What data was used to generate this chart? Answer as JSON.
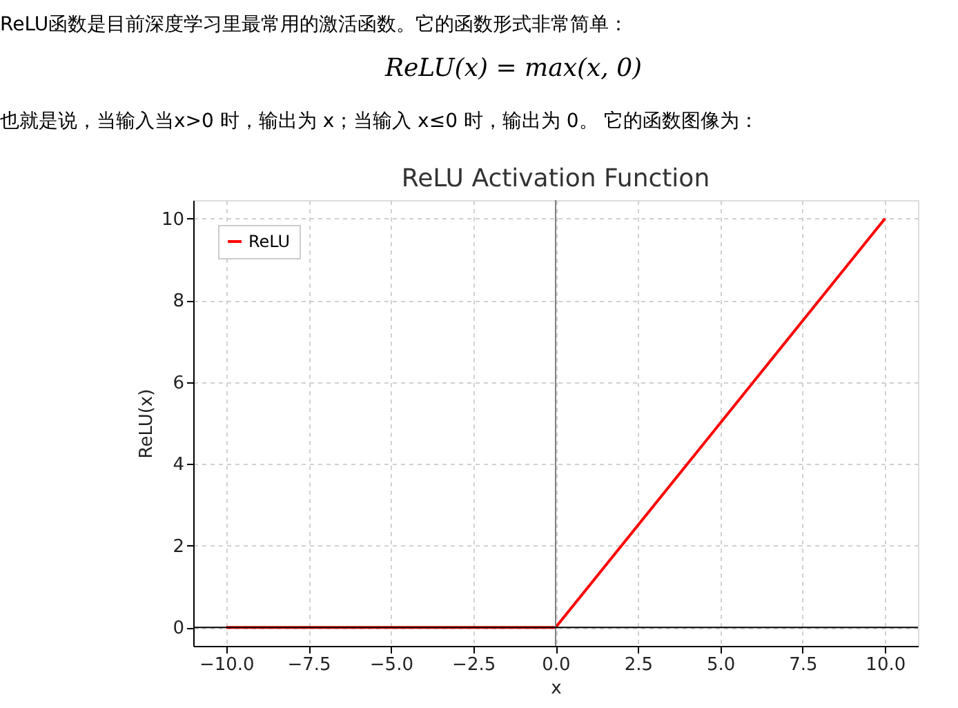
{
  "chart_data": {
    "type": "line",
    "title": "ReLU Activation Function",
    "xlabel": "x",
    "ylabel": "ReLU(x)",
    "annotations": [
      "ReLU函数是目前深度学习里最常用的激活函数。它的函数形式非常简单：",
      "ReLU(x) = max(x, 0)",
      "也就是说，当输入当x>0 时，输出为 x；当输入 x≤0 时，输出为 0。 它的函数图像为："
    ],
    "x": [
      -10,
      0,
      10
    ],
    "series": [
      {
        "name": "ReLU",
        "color": "#ff0000",
        "values": [
          0,
          0,
          10
        ]
      }
    ],
    "xlim": [
      -11,
      11
    ],
    "ylim": [
      -0.45,
      10.45
    ],
    "xticks": [
      {
        "value": -10,
        "label": "−10.0"
      },
      {
        "value": -7.5,
        "label": "−7.5"
      },
      {
        "value": -5,
        "label": "−5.0"
      },
      {
        "value": -2.5,
        "label": "−2.5"
      },
      {
        "value": 0,
        "label": "0.0"
      },
      {
        "value": 2.5,
        "label": "2.5"
      },
      {
        "value": 5,
        "label": "5.0"
      },
      {
        "value": 7.5,
        "label": "7.5"
      },
      {
        "value": 10,
        "label": "10.0"
      }
    ],
    "yticks": [
      0,
      2,
      4,
      6,
      8,
      10
    ],
    "ref_lines": [
      {
        "axis": "x",
        "value": 0,
        "color": "#808080"
      },
      {
        "axis": "y",
        "value": 0,
        "color": "#000000"
      }
    ],
    "grid": true,
    "legend": "top left",
    "marker": "none",
    "line_style": "solid"
  }
}
